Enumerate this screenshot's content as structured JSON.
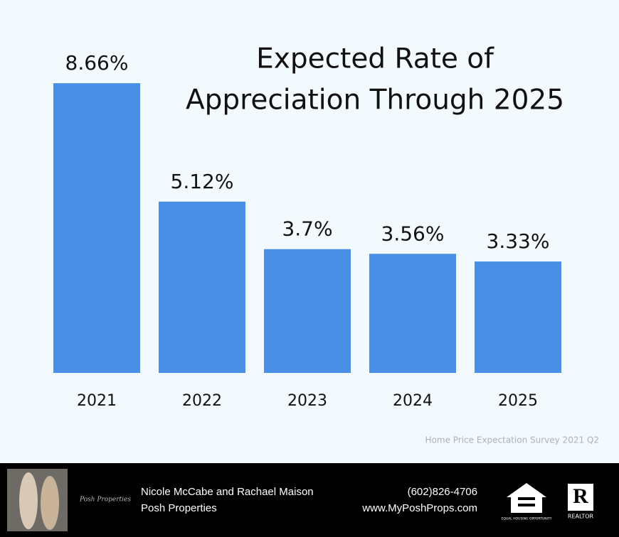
{
  "chart_data": {
    "type": "bar",
    "title": [
      "Expected Rate of",
      "Appreciation Through 2025"
    ],
    "categories": [
      "2021",
      "2022",
      "2023",
      "2024",
      "2025"
    ],
    "values": [
      8.66,
      5.12,
      3.7,
      3.56,
      3.33
    ],
    "value_labels": [
      "8.66%",
      "5.12%",
      "3.7%",
      "3.56%",
      "3.33%"
    ],
    "color": "#4a8fe6",
    "ylim": [
      0,
      10
    ],
    "source": "Home Price Expectation Survey 2021 Q2"
  },
  "footer": {
    "logo": "Posh Properties",
    "names": "Nicole McCabe and Rachael Maison",
    "company": "Posh Properties",
    "phone": "(602)826-4706",
    "website": "www.MyPoshProps.com",
    "housing": "EQUAL HOUSING OPPORTUNITY",
    "realtor": "REALTOR"
  }
}
